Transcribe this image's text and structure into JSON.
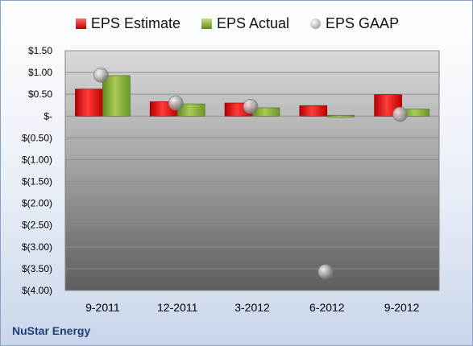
{
  "company_label": "NuStar Energy",
  "chart_data": {
    "type": "bar",
    "title": "",
    "xlabel": "",
    "ylabel": "",
    "categories": [
      "9-2011",
      "12-2011",
      "3-2012",
      "6-2012",
      "9-2012"
    ],
    "series": [
      {
        "name": "EPS Estimate",
        "kind": "bar",
        "color": "#e8141c",
        "values": [
          0.62,
          0.33,
          0.3,
          0.24,
          0.49
        ]
      },
      {
        "name": "EPS Actual",
        "kind": "bar",
        "color": "#8db33a",
        "values": [
          0.93,
          0.28,
          0.19,
          -0.03,
          0.16
        ]
      },
      {
        "name": "EPS GAAP",
        "kind": "marker",
        "color": "#bfbfbf",
        "values": [
          0.94,
          0.3,
          0.22,
          -3.57,
          0.04
        ]
      }
    ],
    "ylim": [
      -4.0,
      1.5
    ],
    "yticks": [
      1.5,
      1.0,
      0.5,
      0,
      -0.5,
      -1.0,
      -1.5,
      -2.0,
      -2.5,
      -3.0,
      -3.5,
      -4.0
    ],
    "ytick_labels": [
      "$1.50",
      "$1.00",
      "$0.50",
      "$-",
      "$(0.50)",
      "$(1.00)",
      "$(1.50)",
      "$(2.00)",
      "$(2.50)",
      "$(3.00)",
      "$(3.50)",
      "$(4.00)"
    ],
    "grid": true,
    "legend_position": "top"
  }
}
